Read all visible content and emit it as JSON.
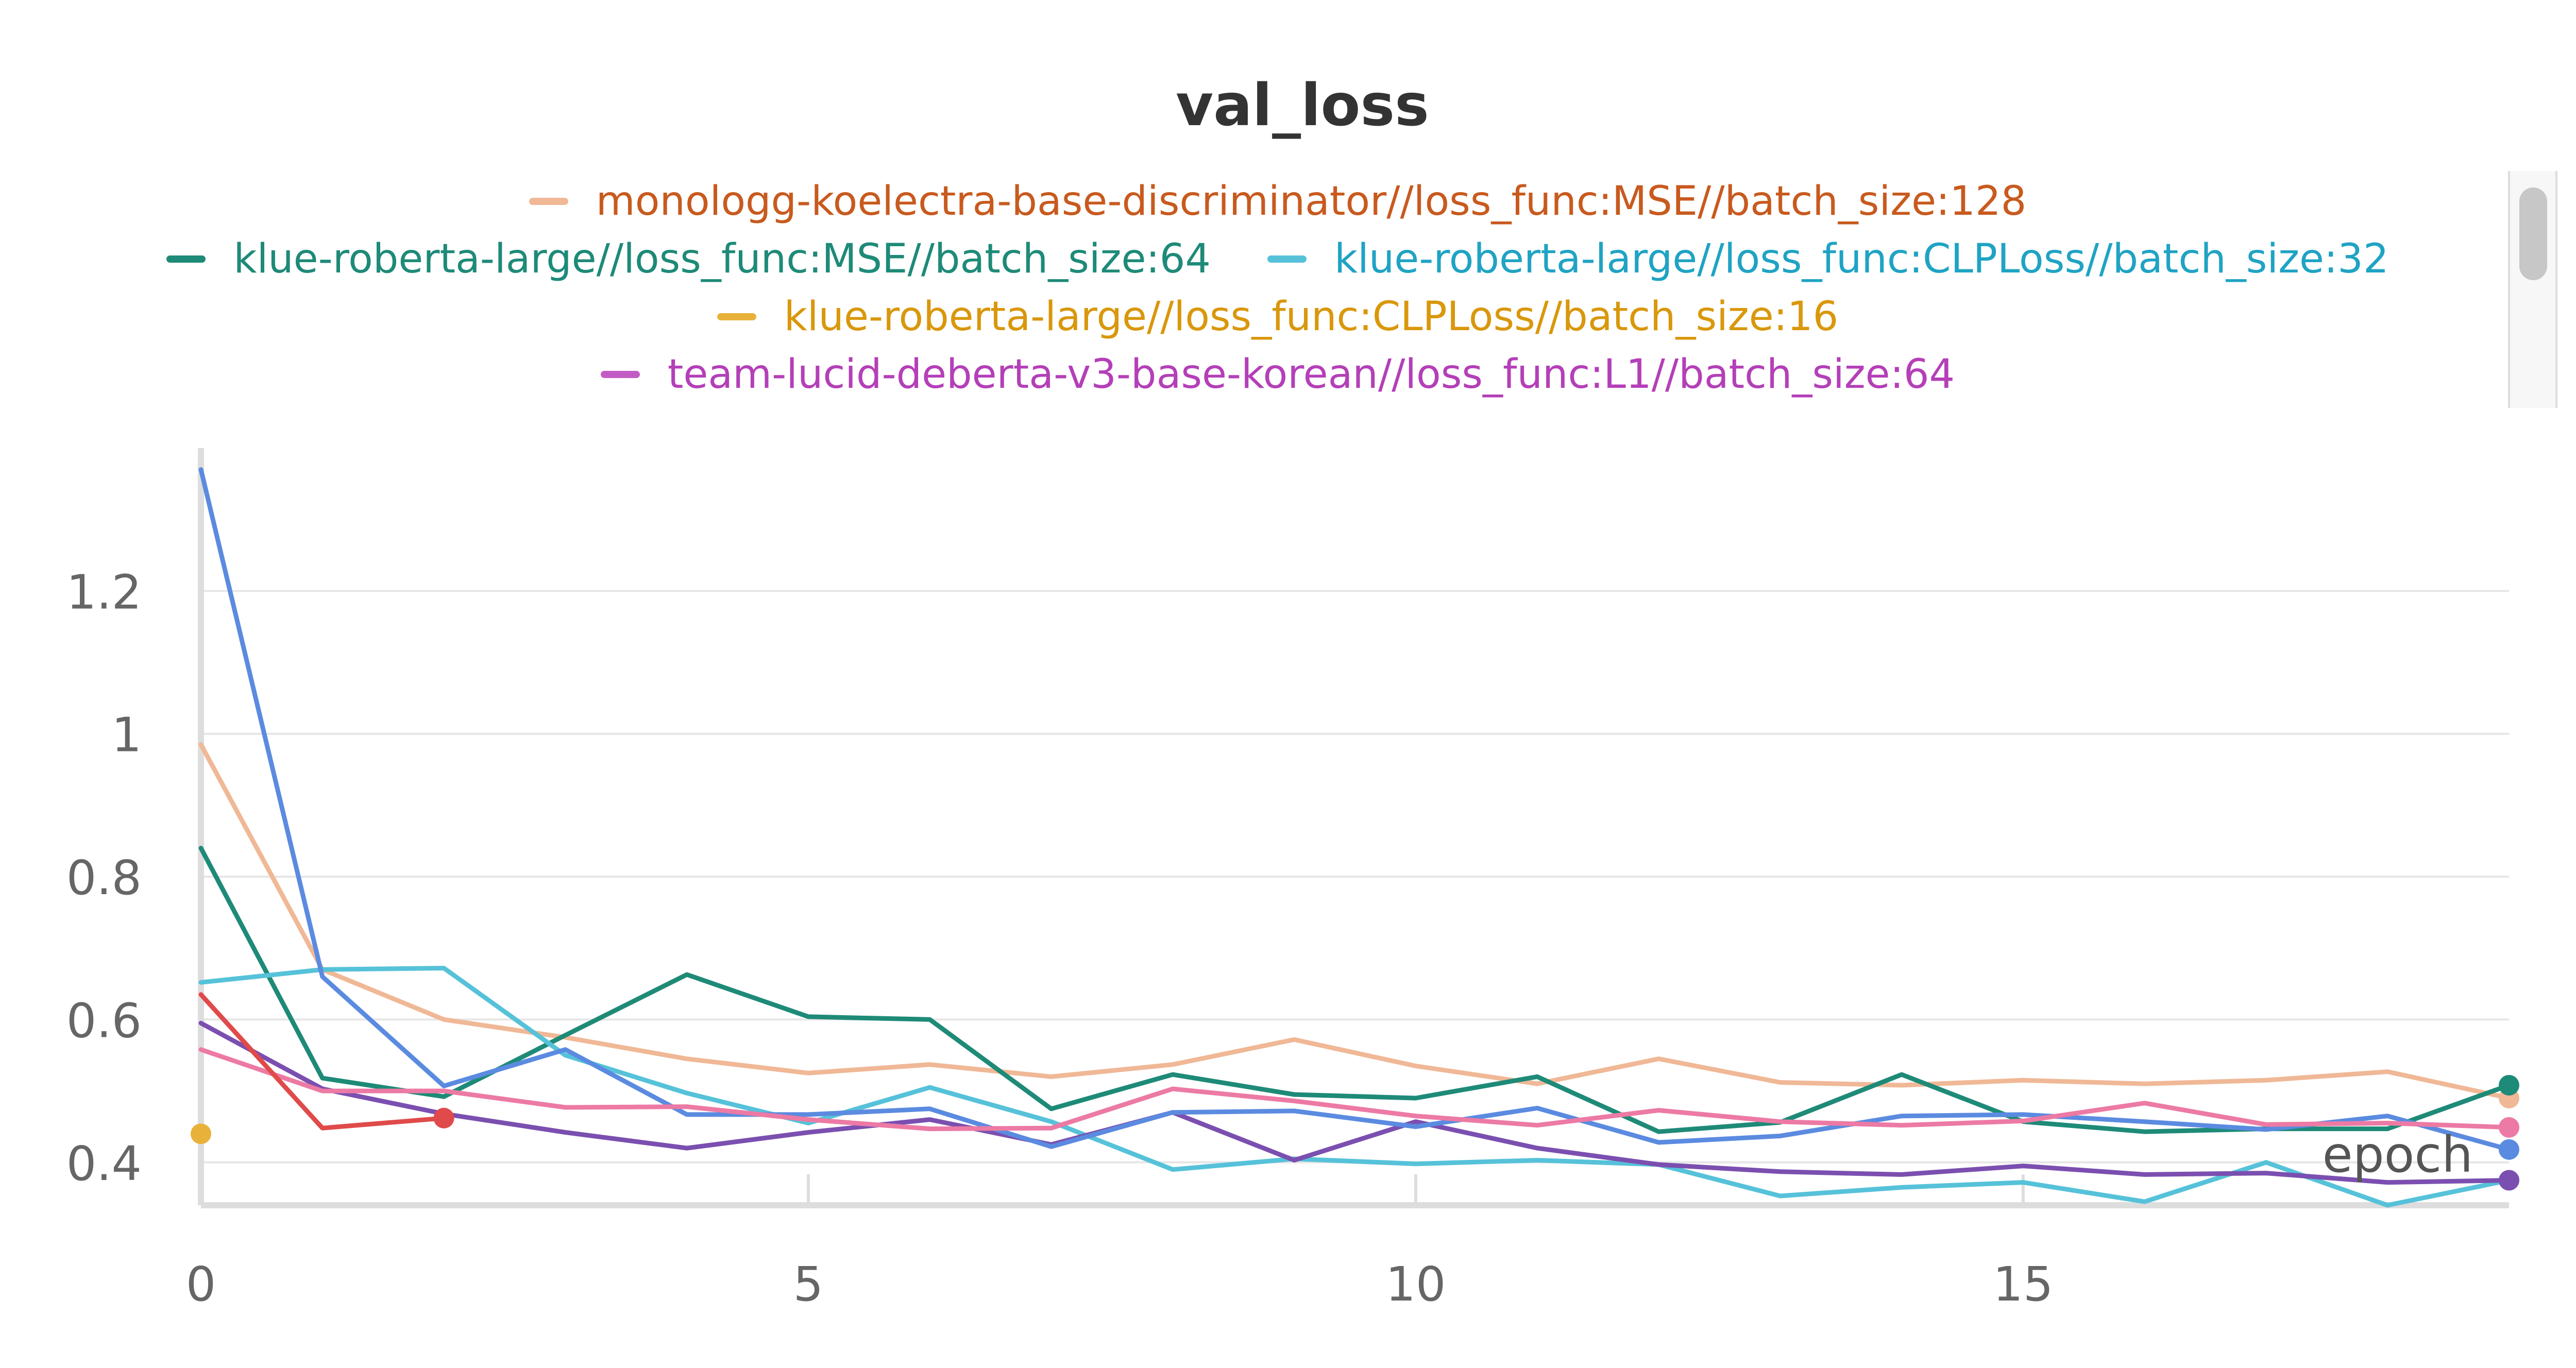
{
  "chart_data": {
    "type": "line",
    "title": "val_loss",
    "xlabel": "epoch",
    "ylabel": "",
    "xlim": [
      0,
      19
    ],
    "ylim": [
      0.34,
      1.4
    ],
    "x_ticks": [
      0,
      5,
      10,
      15
    ],
    "x_tick_labels": [
      "0",
      "5",
      "10",
      "15"
    ],
    "y_ticks": [
      0.4,
      0.6,
      0.8,
      1.0,
      1.2
    ],
    "y_tick_labels": [
      "0.4",
      "0.6",
      "0.8",
      "1",
      "1.2"
    ],
    "grid": true,
    "legend_position": "top",
    "legend": {
      "rows": [
        [
          0
        ],
        [
          1,
          2
        ],
        [
          3
        ],
        [
          4
        ]
      ],
      "entries": [
        {
          "label": "monologg-koelectra-base-discriminator//loss_func:MSE//batch_size:128",
          "swatch_color": "#f0b896",
          "text_color": "#c85a1e"
        },
        {
          "label": "klue-roberta-large//loss_func:MSE//batch_size:64",
          "swatch_color": "#1e8a78",
          "text_color": "#1e8a78"
        },
        {
          "label": "klue-roberta-large//loss_func:CLPLoss//batch_size:32",
          "swatch_color": "#56c2d9",
          "text_color": "#1fa3c4"
        },
        {
          "label": "klue-roberta-large//loss_func:CLPLoss//batch_size:16",
          "swatch_color": "#e8b23a",
          "text_color": "#d9970b"
        },
        {
          "label": "team-lucid-deberta-v3-base-korean//loss_func:L1//batch_size:64",
          "swatch_color": "#c25cc4",
          "text_color": "#b43fb8"
        }
      ]
    },
    "series": [
      {
        "name": "monologg-koelectra-base-discriminator//loss_func:MSE//batch_size:128",
        "color": "#f0b896",
        "x": [
          0,
          1,
          2,
          3,
          4,
          5,
          6,
          7,
          8,
          9,
          10,
          11,
          12,
          13,
          14,
          15,
          16,
          17,
          18,
          19
        ],
        "y": [
          0.985,
          0.67,
          0.6,
          0.575,
          0.545,
          0.525,
          0.537,
          0.52,
          0.537,
          0.572,
          0.535,
          0.51,
          0.545,
          0.512,
          0.508,
          0.515,
          0.51,
          0.515,
          0.527,
          0.49
        ]
      },
      {
        "name": "klue-roberta-large//loss_func:MSE//batch_size:64",
        "color": "#1e8a78",
        "x": [
          0,
          1,
          2,
          3,
          4,
          5,
          6,
          7,
          8,
          9,
          10,
          11,
          12,
          13,
          14,
          15,
          16,
          17,
          18,
          19
        ],
        "y": [
          0.84,
          0.518,
          0.492,
          0.578,
          0.663,
          0.604,
          0.6,
          0.475,
          0.523,
          0.495,
          0.49,
          0.52,
          0.443,
          0.456,
          0.523,
          0.457,
          0.443,
          0.447,
          0.447,
          0.508
        ]
      },
      {
        "name": "klue-roberta-large//loss_func:CLPLoss//batch_size:32",
        "color": "#56c2d9",
        "x": [
          0,
          1,
          2,
          3,
          4,
          5,
          6,
          7,
          8,
          9,
          10,
          11,
          12,
          13,
          14,
          15,
          16,
          17,
          18,
          19
        ],
        "y": [
          0.652,
          0.67,
          0.672,
          0.55,
          0.497,
          0.455,
          0.505,
          0.457,
          0.39,
          0.405,
          0.398,
          0.403,
          0.397,
          0.353,
          0.365,
          0.372,
          0.345,
          0.4,
          0.34,
          0.375
        ]
      },
      {
        "name": "klue-roberta-large//loss_func:CLPLoss//batch_size:16",
        "color": "#e8b23a",
        "x": [
          0
        ],
        "y": [
          0.44
        ]
      },
      {
        "name": "team-lucid-deberta-v3-base-korean//loss_func:L1//batch_size:64",
        "color": "#7b4fb0",
        "x": [
          0,
          1,
          2,
          3,
          4,
          5,
          6,
          7,
          8,
          9,
          10,
          11,
          12,
          13,
          14,
          15,
          16,
          17,
          18,
          19
        ],
        "y": [
          0.595,
          0.503,
          0.468,
          0.442,
          0.42,
          0.442,
          0.46,
          0.425,
          0.47,
          0.403,
          0.457,
          0.42,
          0.397,
          0.387,
          0.383,
          0.395,
          0.383,
          0.385,
          0.372,
          0.375
        ]
      },
      {
        "name": "",
        "color": "#5b8be0",
        "x": [
          0,
          1,
          2,
          3,
          4,
          5,
          6,
          7,
          8,
          9,
          10,
          11,
          12,
          13,
          14,
          15,
          16,
          17,
          18,
          19
        ],
        "y": [
          1.37,
          0.66,
          0.507,
          0.558,
          0.467,
          0.467,
          0.475,
          0.422,
          0.47,
          0.472,
          0.45,
          0.476,
          0.428,
          0.437,
          0.465,
          0.467,
          0.457,
          0.446,
          0.465,
          0.418
        ]
      },
      {
        "name": "",
        "color": "#ec7aa4",
        "x": [
          0,
          1,
          2,
          3,
          4,
          5,
          6,
          7,
          8,
          9,
          10,
          11,
          12,
          13,
          14,
          15,
          16,
          17,
          18,
          19
        ],
        "y": [
          0.558,
          0.5,
          0.5,
          0.477,
          0.478,
          0.46,
          0.447,
          0.448,
          0.503,
          0.486,
          0.465,
          0.452,
          0.473,
          0.457,
          0.452,
          0.458,
          0.483,
          0.453,
          0.455,
          0.449
        ]
      },
      {
        "name": "",
        "color": "#e04a4a",
        "x": [
          0,
          1,
          2
        ],
        "y": [
          0.635,
          0.448,
          0.462
        ]
      }
    ]
  }
}
